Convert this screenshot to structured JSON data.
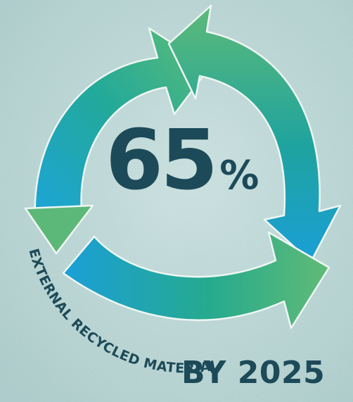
{
  "graphic": {
    "percent_value": "65",
    "percent_sign": "%",
    "arc_label": "EXTERNAL RECYCLED MATERIAL",
    "target_line": "BY 2025",
    "icon": "recycle-arrows-icon",
    "colors": {
      "text": "#1d4a58",
      "arrow_blue": "#1aa3d9",
      "arrow_green": "#5cb878",
      "background": "#b7d3d2"
    }
  }
}
